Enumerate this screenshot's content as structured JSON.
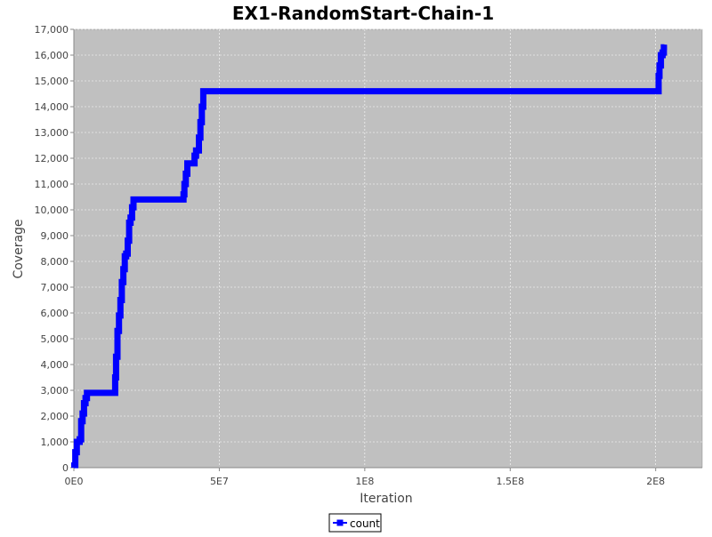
{
  "chart_data": {
    "type": "line",
    "title": "EX1-RandomStart-Chain-1",
    "xlabel": "Iteration",
    "ylabel": "Coverage",
    "xlim": [
      0,
      216000000
    ],
    "ylim": [
      0,
      17000
    ],
    "x_ticks": [
      {
        "value": 0,
        "label": "0E0"
      },
      {
        "value": 50000000,
        "label": "5E7"
      },
      {
        "value": 100000000,
        "label": "1E8"
      },
      {
        "value": 150000000,
        "label": "1.5E8"
      },
      {
        "value": 200000000,
        "label": "2E8"
      }
    ],
    "y_ticks": [
      {
        "value": 0,
        "label": "0"
      },
      {
        "value": 1000,
        "label": "1,000"
      },
      {
        "value": 2000,
        "label": "2,000"
      },
      {
        "value": 3000,
        "label": "3,000"
      },
      {
        "value": 4000,
        "label": "4,000"
      },
      {
        "value": 5000,
        "label": "5,000"
      },
      {
        "value": 6000,
        "label": "6,000"
      },
      {
        "value": 7000,
        "label": "7,000"
      },
      {
        "value": 8000,
        "label": "8,000"
      },
      {
        "value": 9000,
        "label": "9,000"
      },
      {
        "value": 10000,
        "label": "10,000"
      },
      {
        "value": 11000,
        "label": "11,000"
      },
      {
        "value": 12000,
        "label": "12,000"
      },
      {
        "value": 13000,
        "label": "13,000"
      },
      {
        "value": 14000,
        "label": "14,000"
      },
      {
        "value": 15000,
        "label": "15,000"
      },
      {
        "value": 16000,
        "label": "16,000"
      },
      {
        "value": 17000,
        "label": "17,000"
      }
    ],
    "grid": true,
    "legend_position": "bottom-center",
    "series": [
      {
        "name": "count",
        "color": "#0000ff",
        "x": [
          0,
          500000,
          1000000,
          2000000,
          2500000,
          3000000,
          3500000,
          4000000,
          4500000,
          5000000,
          13900000,
          14200000,
          14500000,
          15000000,
          15500000,
          16000000,
          16500000,
          17000000,
          17500000,
          18000000,
          18500000,
          19000000,
          19500000,
          20000000,
          20500000,
          21000000,
          37400000,
          37700000,
          38000000,
          38500000,
          39000000,
          41000000,
          41500000,
          42000000,
          43000000,
          43500000,
          44000000,
          44500000,
          200600000,
          201000000,
          201300000,
          201800000,
          202400000,
          202800000,
          203000000
        ],
        "y": [
          100,
          600,
          1000,
          1100,
          1800,
          2100,
          2500,
          2700,
          2900,
          2900,
          2900,
          3500,
          4300,
          5300,
          5900,
          6500,
          7200,
          7700,
          8200,
          8300,
          8800,
          9500,
          9700,
          10100,
          10400,
          10400,
          10400,
          10600,
          11000,
          11400,
          11800,
          11800,
          12100,
          12300,
          12800,
          13400,
          14000,
          14600,
          14600,
          15200,
          15600,
          16000,
          16100,
          16300,
          16300
        ]
      }
    ]
  }
}
